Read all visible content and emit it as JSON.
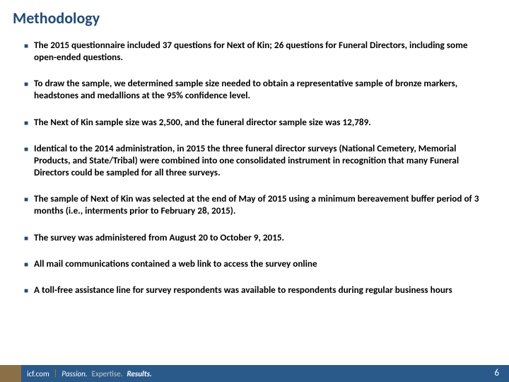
{
  "title": "Methodology",
  "bullets": [
    "The 2015 questionnaire included 37 questions for Next of Kin; 26 questions for Funeral Directors, including some open-ended questions.",
    "To draw the sample, we determined sample size needed to obtain a representative sample of bronze markers, headstones and medallions at the 95% confidence level.",
    "The Next of Kin sample size was 2,500, and the funeral director sample size was 12,789.",
    "Identical to the 2014 administration, in 2015 the three funeral director surveys (National Cemetery, Memorial Products, and State/Tribal) were combined into one consolidated instrument in recognition that many Funeral Directors could be sampled for all three surveys.",
    "The sample of Next of Kin was selected at the end of May of 2015 using a minimum bereavement buffer period of 3 months (i.e., interments prior to February 28, 2015).",
    "The survey was administered  from August 20 to October 9, 2015.",
    "All mail communications contained a web link to access the survey online",
    "A toll-free assistance line for survey respondents was available to respondents during regular business hours"
  ],
  "footer": {
    "brand": "icf.com",
    "tagline1": "Passion.",
    "tagline2": "Expertise.",
    "tagline3": "Results."
  },
  "page_number": "6",
  "colors": {
    "title": "#1f497d",
    "bullet_marker": "#1f497d",
    "footer_blue": "#2a5a8a",
    "footer_brown": "#8b6f47"
  }
}
